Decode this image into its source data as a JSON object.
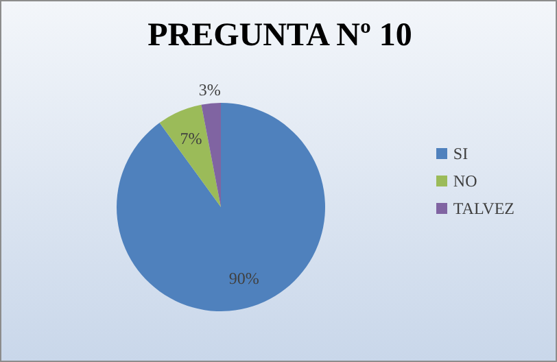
{
  "chart_data": {
    "type": "pie",
    "title": "PREGUNTA Nº 10",
    "categories": [
      "SI",
      "NO",
      "TALVEZ"
    ],
    "values": [
      90,
      7,
      3
    ],
    "colors": [
      "#4f81bd",
      "#9bbb59",
      "#8064a2"
    ],
    "value_labels": [
      "90%",
      "7%",
      "3%"
    ],
    "legend": "right"
  }
}
